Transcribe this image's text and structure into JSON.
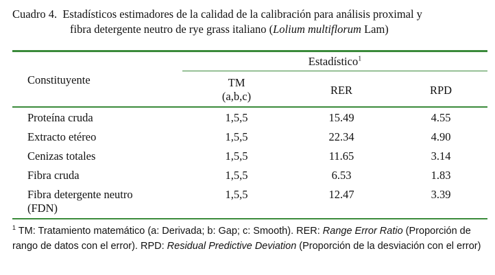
{
  "caption": {
    "label": "Cuadro 4.",
    "line1": "Estadísticos estimadores de la calidad de la calibración para análisis proximal y",
    "line2_pre": "fibra detergente neutro de rye grass italiano (",
    "line2_italic": "Lolium multiflorum",
    "line2_post": " Lam)"
  },
  "table": {
    "group_header": "Estadístico",
    "group_header_sup": "1",
    "col_constituyente": "Constituyente",
    "col_tm_line1": "TM",
    "col_tm_line2": "(a,b,c)",
    "col_rer": "RER",
    "col_rpd": "RPD",
    "rows": [
      {
        "label": "Proteína cruda",
        "label2": "",
        "tm": "1,5,5",
        "rer": "15.49",
        "rpd": "4.55"
      },
      {
        "label": "Extracto etéreo",
        "label2": "",
        "tm": "1,5,5",
        "rer": "22.34",
        "rpd": "4.90"
      },
      {
        "label": "Cenizas totales",
        "label2": "",
        "tm": "1,5,5",
        "rer": "11.65",
        "rpd": "3.14"
      },
      {
        "label": "Fibra cruda",
        "label2": "",
        "tm": "1,5,5",
        "rer": "6.53",
        "rpd": "1.83"
      },
      {
        "label": "Fibra detergente neutro",
        "label2": "(FDN)",
        "tm": "1,5,5",
        "rer": "12.47",
        "rpd": "3.39"
      }
    ]
  },
  "footnote": {
    "marker": "1",
    "part1": " TM: Tratamiento matemático (a: Derivada; b: Gap; c: Smooth). RER: ",
    "part2_italic": "Range Error Ratio",
    "part3": " (Proporción de rango de datos con el error). RPD: ",
    "part4_italic": "Residual Predictive Deviation",
    "part5": " (Proporción de la desviación con el error)"
  }
}
